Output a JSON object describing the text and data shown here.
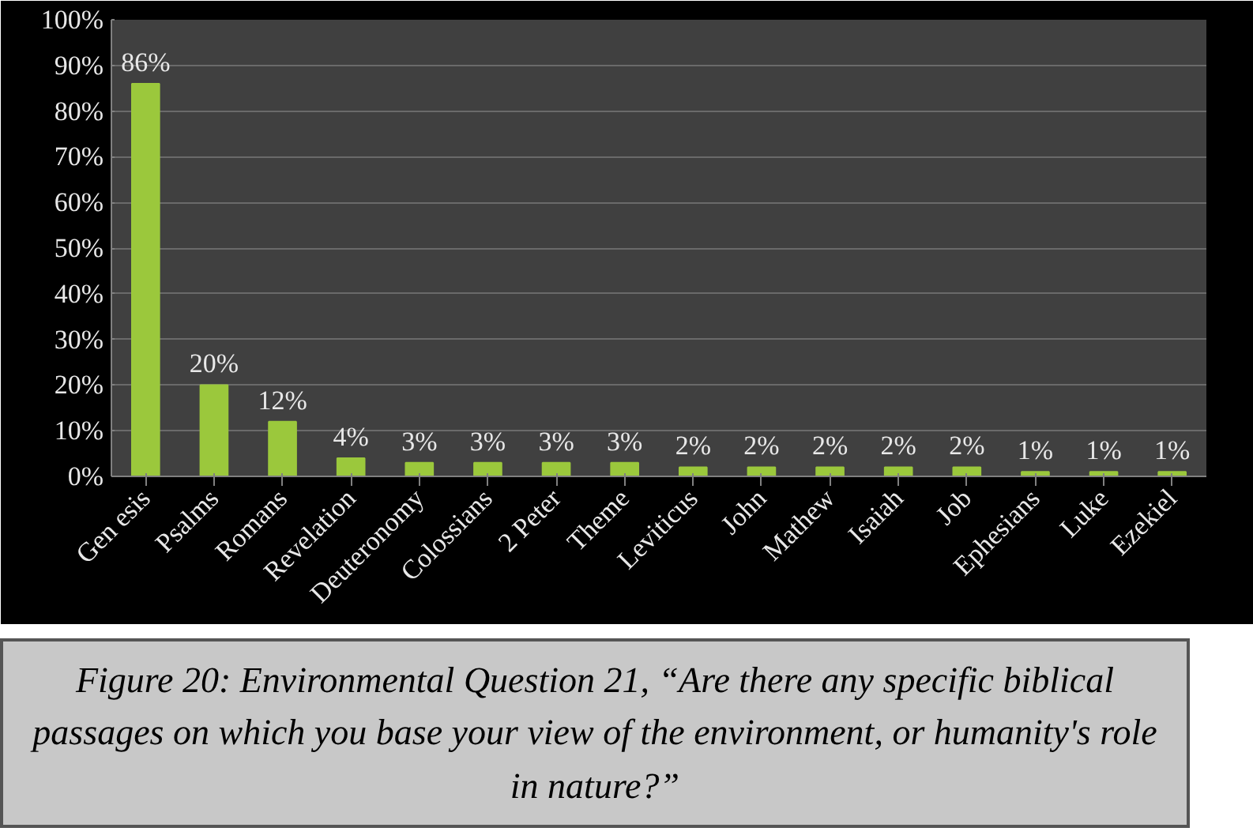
{
  "chart_data": {
    "type": "bar",
    "categories": [
      "Gen esis",
      "Psalms",
      "Romans",
      "Revelation",
      "Deuteronomy",
      "Colossians",
      "2 Peter",
      "Theme",
      "Leviticus",
      "John",
      "Mathew",
      "Isaiah",
      "Job",
      "Ephesians",
      "Luke",
      "Ezekiel"
    ],
    "values": [
      86,
      20,
      12,
      4,
      3,
      3,
      3,
      3,
      2,
      2,
      2,
      2,
      2,
      1,
      1,
      1
    ],
    "value_labels": [
      "86%",
      "20%",
      "12%",
      "4%",
      "3%",
      "3%",
      "3%",
      "3%",
      "2%",
      "2%",
      "2%",
      "2%",
      "2%",
      "1%",
      "1%",
      "1%"
    ],
    "color": "#9bc83c",
    "ylim": [
      0,
      100
    ],
    "yticks": [
      {
        "value": 0,
        "label": "0%"
      },
      {
        "value": 10,
        "label": "10%"
      },
      {
        "value": 20,
        "label": "20%"
      },
      {
        "value": 30,
        "label": "30%"
      },
      {
        "value": 40,
        "label": "40%"
      },
      {
        "value": 50,
        "label": "50%"
      },
      {
        "value": 60,
        "label": "60%"
      },
      {
        "value": 70,
        "label": "70%"
      },
      {
        "value": 80,
        "label": "80%"
      },
      {
        "value": 90,
        "label": "90%"
      },
      {
        "value": 100,
        "label": "100%"
      }
    ],
    "grid": "y",
    "annotations": [
      "Figure 20: Environmental Question 21, “Are there any specific biblical passages on which you base your view of the environment, or humanity's role in nature?”"
    ]
  }
}
